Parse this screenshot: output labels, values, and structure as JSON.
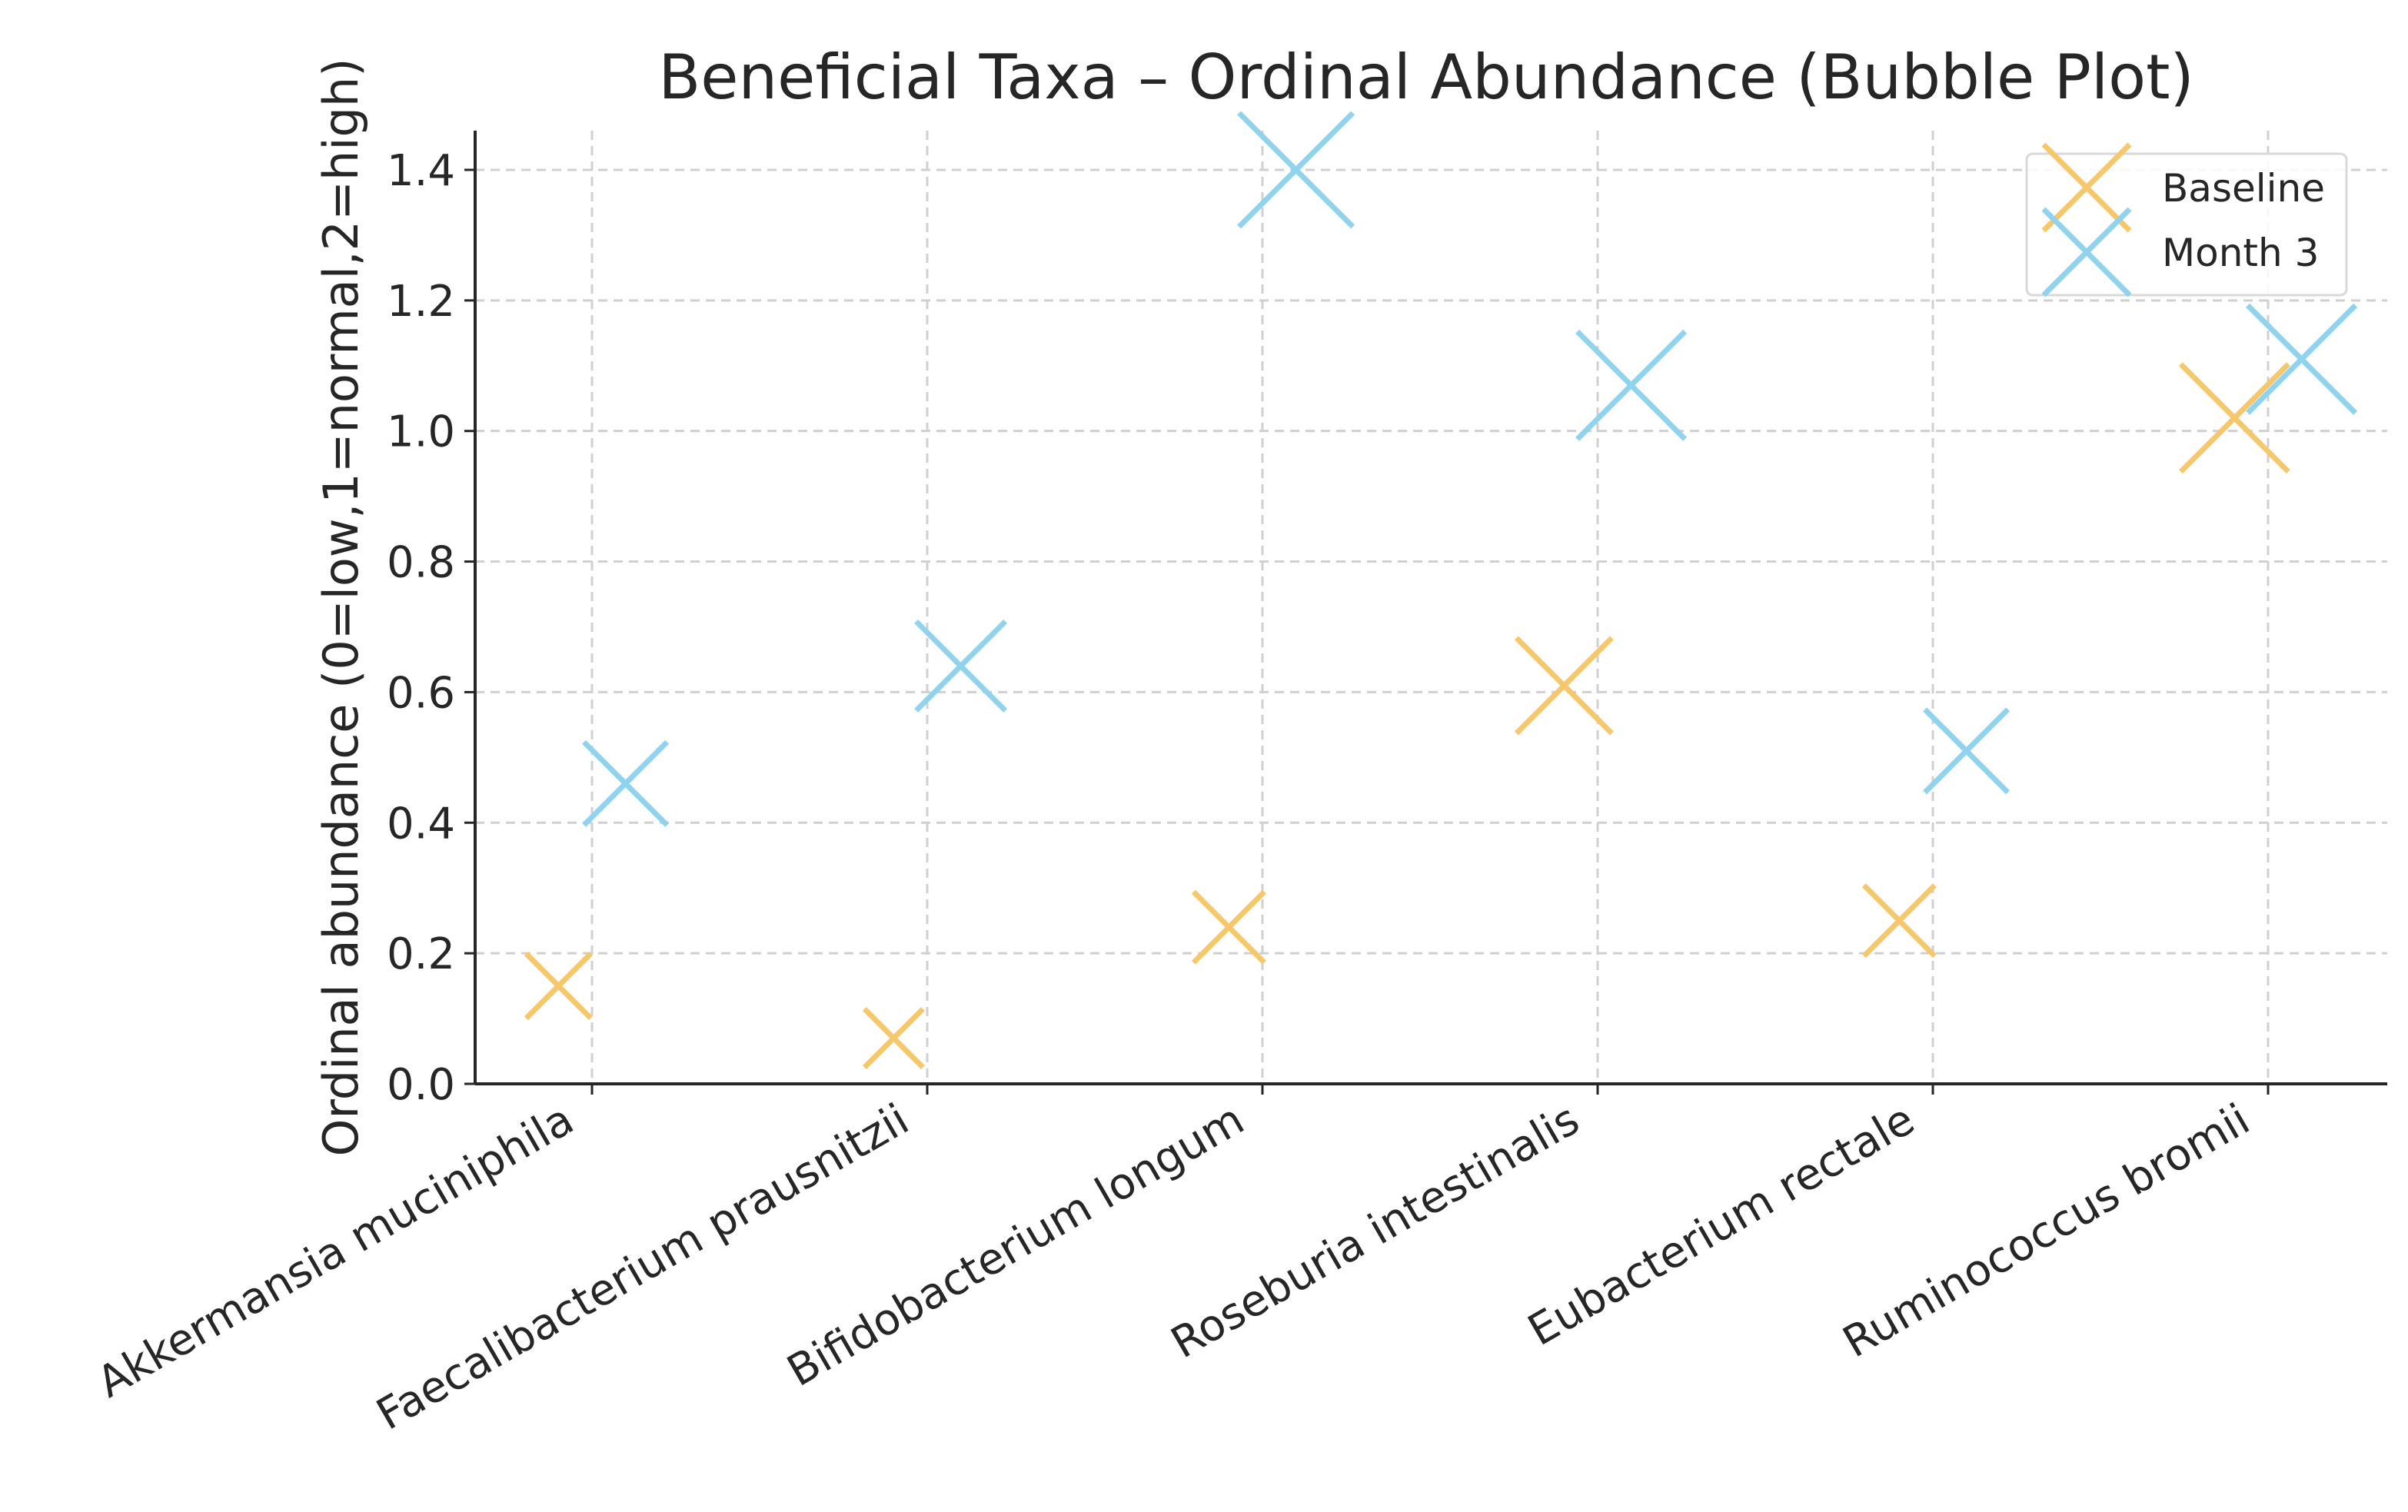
{
  "chart_data": {
    "type": "scatter",
    "title": "Beneficial Taxa – Ordinal Abundance (Bubble Plot)",
    "xlabel": "",
    "ylabel": "Ordinal abundance (0=low,1=normal,2=high)",
    "categories": [
      "Akkermansia muciniphila",
      "Faecalibacterium prausnitzii",
      "Bifidobacterium longum",
      "Roseburia intestinalis",
      "Eubacterium rectale",
      "Ruminococcus bromii"
    ],
    "ylim": [
      0,
      1.46
    ],
    "yticks": [
      0.0,
      0.2,
      0.4,
      0.6,
      0.8,
      1.0,
      1.2,
      1.4
    ],
    "ytick_labels": [
      "0.0",
      "0.2",
      "0.4",
      "0.6",
      "0.8",
      "1.0",
      "1.2",
      "1.4"
    ],
    "grid": true,
    "legend_position": "top-right",
    "marker": "x",
    "series": [
      {
        "name": "Baseline",
        "color": "#f7c76b",
        "x_offset": -0.1,
        "values": [
          0.15,
          0.07,
          0.24,
          0.61,
          0.25,
          1.02
        ],
        "bubble_size": [
          0.5,
          0.4,
          0.6,
          1.0,
          0.6,
          1.2
        ]
      },
      {
        "name": "Month 3",
        "color": "#8fd3ee",
        "x_offset": 0.1,
        "values": [
          0.46,
          0.64,
          1.4,
          1.07,
          0.51,
          1.11
        ],
        "bubble_size": [
          0.8,
          0.9,
          1.3,
          1.2,
          0.8,
          1.2
        ]
      }
    ]
  }
}
